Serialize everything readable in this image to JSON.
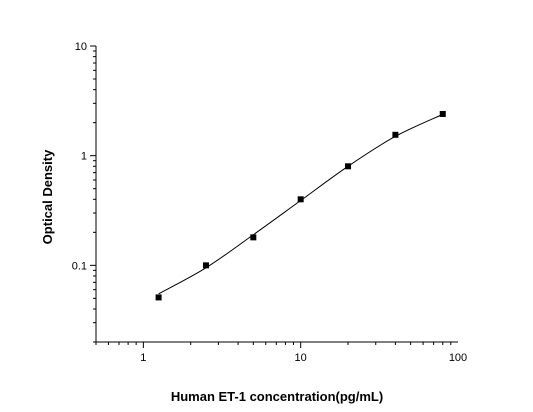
{
  "chart_data": {
    "type": "scatter",
    "title": "",
    "xlabel": "Human ET-1 concentration(pg/mL)",
    "ylabel": "Optical Density",
    "xscale": "log",
    "yscale": "log",
    "xlim": [
      0.5,
      100
    ],
    "ylim": [
      0.02,
      10
    ],
    "grid": false,
    "x_ticks": [
      {
        "value": 1,
        "label": "1"
      },
      {
        "value": 10,
        "label": "10"
      },
      {
        "value": 100,
        "label": "100"
      }
    ],
    "y_ticks": [
      {
        "value": 0.1,
        "label": "0.1"
      },
      {
        "value": 1,
        "label": "1"
      },
      {
        "value": 10,
        "label": "10"
      }
    ],
    "series": [
      {
        "type": "scatter",
        "marker": "square",
        "color": "#000000",
        "x": [
          1.25,
          2.5,
          5,
          10,
          20,
          40,
          80
        ],
        "y": [
          0.051,
          0.1,
          0.18,
          0.4,
          0.8,
          1.55,
          2.4
        ]
      },
      {
        "type": "line",
        "color": "#000000",
        "x": [
          1.25,
          2.5,
          5,
          10,
          20,
          40,
          80
        ],
        "y": [
          0.055,
          0.095,
          0.19,
          0.39,
          0.8,
          1.5,
          2.38
        ]
      }
    ]
  }
}
